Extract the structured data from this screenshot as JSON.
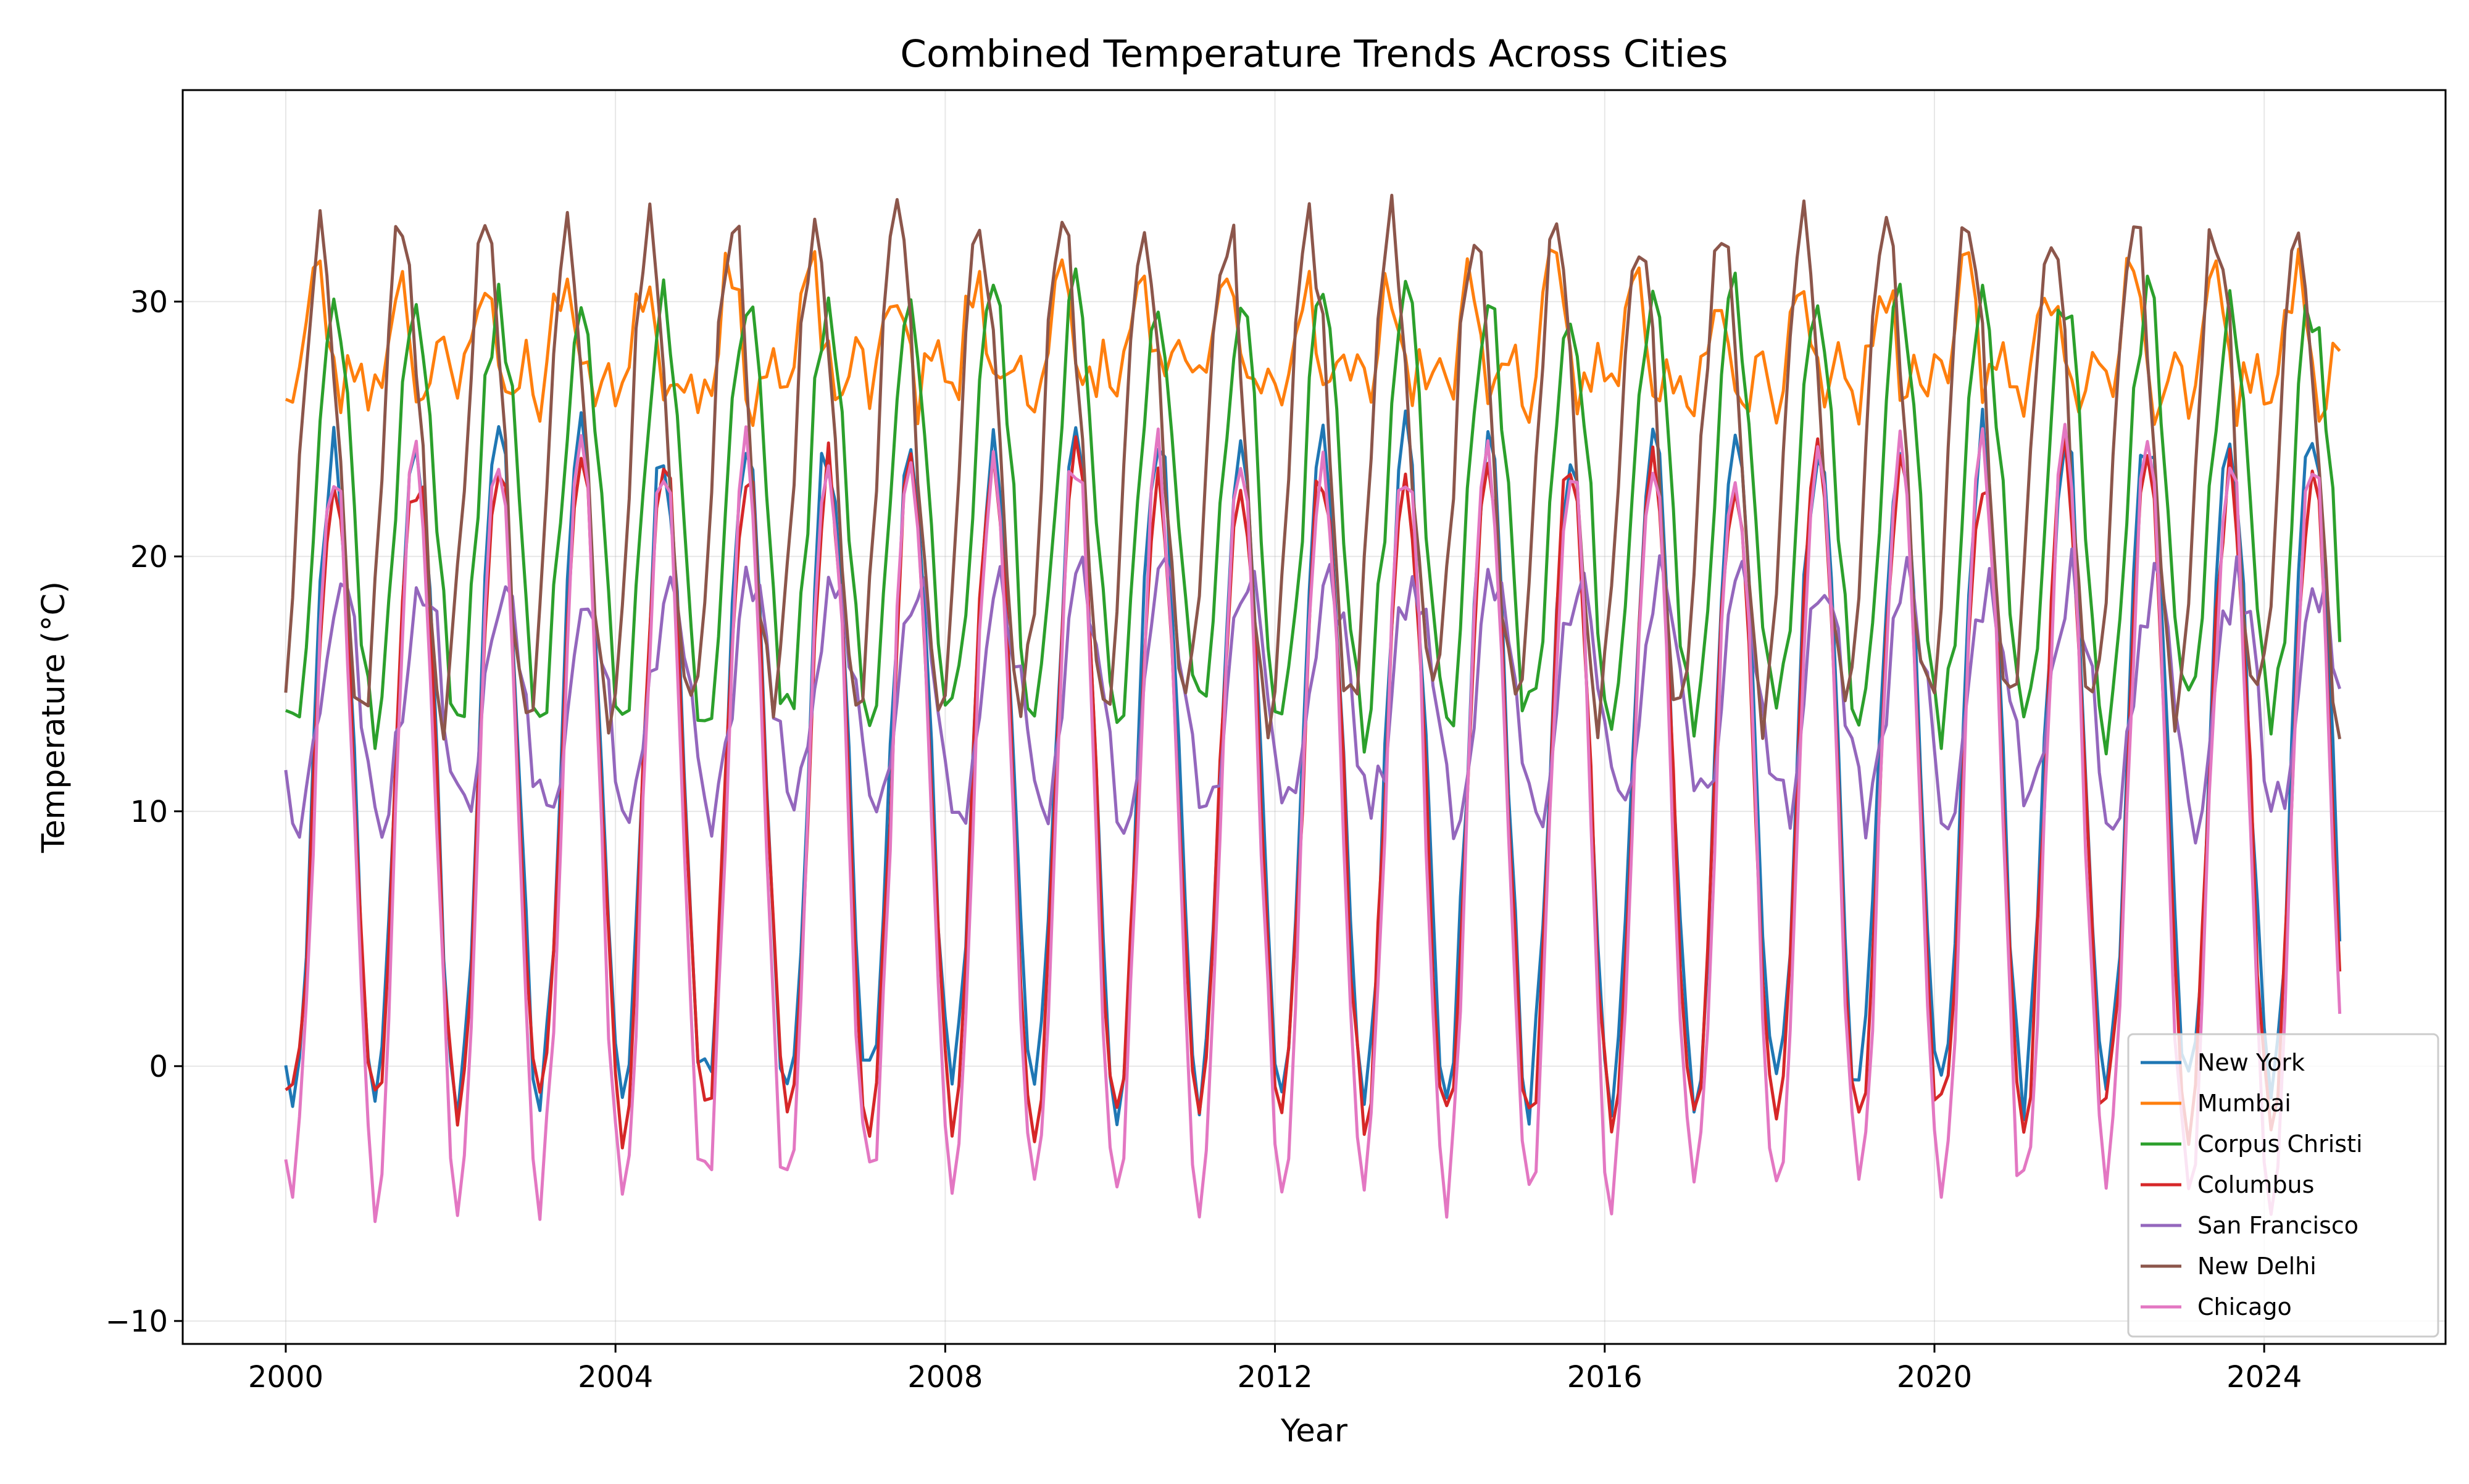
{
  "chart_data": {
    "type": "line",
    "title": "Combined Temperature Trends Across Cities",
    "xlabel": "Year",
    "ylabel": "Temperature (°C)",
    "xlim": [
      1998.75,
      2026.2
    ],
    "ylim": [
      -10.9,
      38.3
    ],
    "x_ticks": [
      2000,
      2004,
      2008,
      2012,
      2016,
      2020,
      2024
    ],
    "x_tick_labels": [
      "2000",
      "2004",
      "2008",
      "2012",
      "2016",
      "2020",
      "2024"
    ],
    "y_ticks": [
      -10,
      0,
      10,
      20,
      30
    ],
    "y_tick_labels": [
      "−10",
      "0",
      "10",
      "20",
      "30"
    ],
    "grid": true,
    "legend_position": "bottom-right",
    "x_start": 2000,
    "x_step_years": 0.0833333,
    "months": 300,
    "series": [
      {
        "name": "New York",
        "color": "#1f77b4",
        "min": -1.0,
        "max": 24.5,
        "peak_month": 7,
        "seed": 11
      },
      {
        "name": "Mumbai",
        "color": "#ff7f0e",
        "min": 25.0,
        "max": 31.0,
        "peak_month": 5,
        "seed": 23,
        "second_peak": true
      },
      {
        "name": "Corpus Christi",
        "color": "#2ca02c",
        "min": 13.5,
        "max": 30.0,
        "peak_month": 7,
        "seed": 37
      },
      {
        "name": "Columbus",
        "color": "#d62728",
        "min": -2.0,
        "max": 23.5,
        "peak_month": 7,
        "seed": 41
      },
      {
        "name": "San Francisco",
        "color": "#9467bd",
        "min": 10.0,
        "max": 19.0,
        "peak_month": 8,
        "seed": 53
      },
      {
        "name": "New Delhi",
        "color": "#8c564b",
        "min": 14.0,
        "max": 33.0,
        "peak_month": 5,
        "seed": 67
      },
      {
        "name": "Chicago",
        "color": "#e377c2",
        "min": -5.0,
        "max": 24.0,
        "peak_month": 7,
        "seed": 79
      }
    ]
  }
}
